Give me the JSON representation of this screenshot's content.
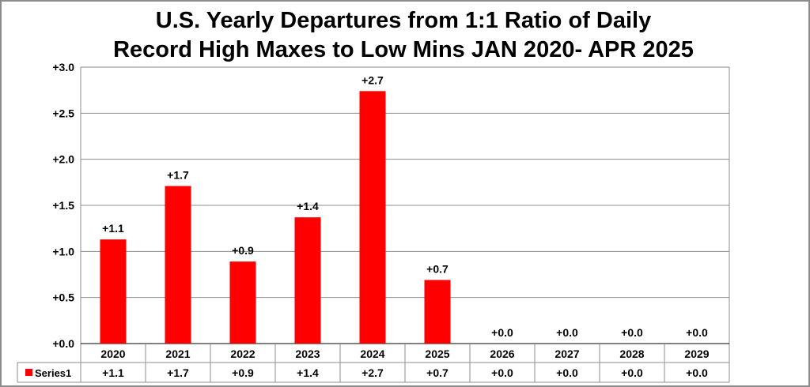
{
  "chart_data": {
    "type": "bar",
    "title_lines": [
      "U.S. Yearly Departures from 1:1 Ratio of Daily",
      "Record High Maxes to Low Mins JAN 2020- APR 2025"
    ],
    "categories": [
      "2020",
      "2021",
      "2022",
      "2023",
      "2024",
      "2025",
      "2026",
      "2027",
      "2028",
      "2029"
    ],
    "series": [
      {
        "name": "Series1",
        "color": "#ff0000",
        "values": [
          1.13,
          1.71,
          0.89,
          1.37,
          2.74,
          0.69,
          0,
          0,
          0,
          0
        ],
        "labels": [
          "+1.1",
          "+1.7",
          "+0.9",
          "+1.4",
          "+2.7",
          "+0.7",
          "+0.0",
          "+0.0",
          "+0.0",
          "+0.0"
        ]
      }
    ],
    "ylim": [
      0,
      3.0
    ],
    "yticks": [
      {
        "value": 0.0,
        "label": "+0.0"
      },
      {
        "value": 0.5,
        "label": "+0.5"
      },
      {
        "value": 1.0,
        "label": "+1.0"
      },
      {
        "value": 1.5,
        "label": "+1.5"
      },
      {
        "value": 2.0,
        "label": "+2.0"
      },
      {
        "value": 2.5,
        "label": "+2.5"
      },
      {
        "value": 3.0,
        "label": "+3.0"
      }
    ],
    "xlabel": "",
    "ylabel": "",
    "grid": true,
    "data_table": true
  }
}
